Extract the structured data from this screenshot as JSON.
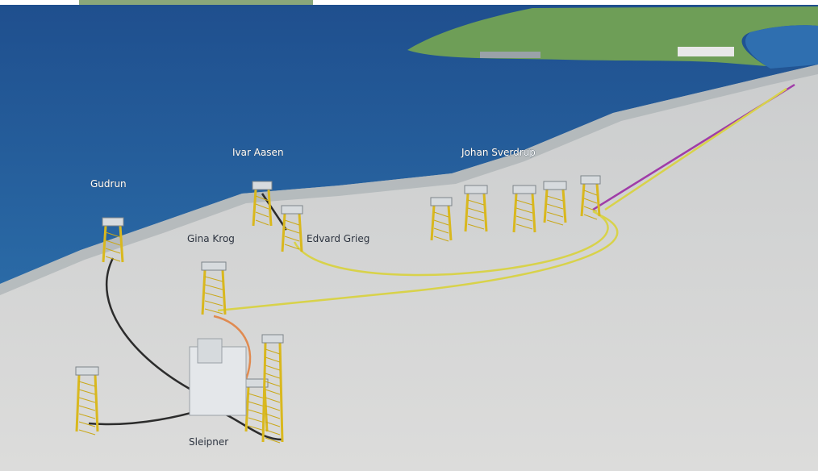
{
  "platforms": [
    {
      "label": "Gudrun"
    },
    {
      "label": "Ivar Aasen"
    },
    {
      "label": "Johan Sverdrup"
    },
    {
      "label": "Gina Krog"
    },
    {
      "label": "Edvard Grieg"
    },
    {
      "label": "Sleipner"
    }
  ]
}
